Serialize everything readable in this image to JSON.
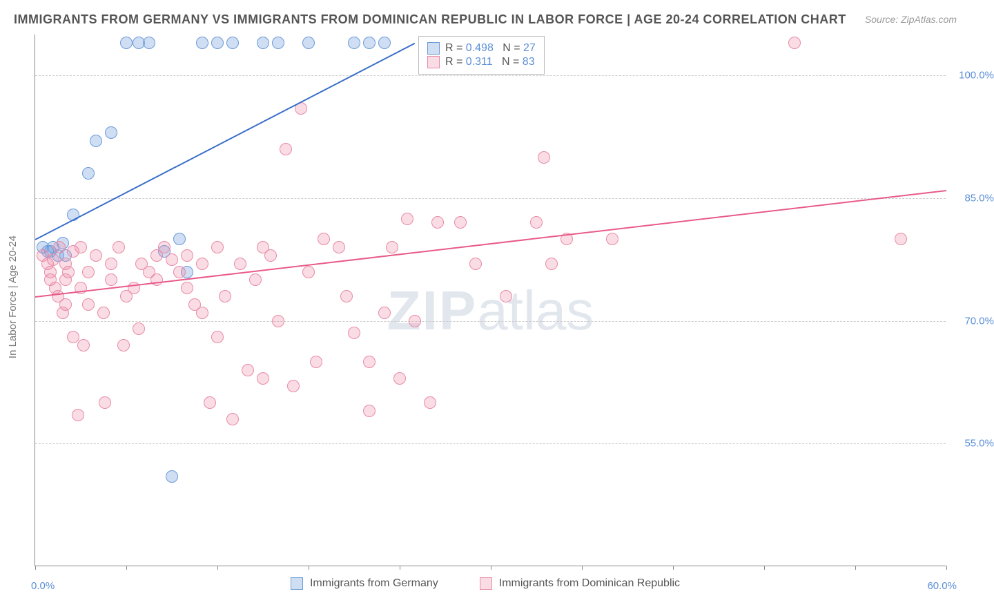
{
  "title": "IMMIGRANTS FROM GERMANY VS IMMIGRANTS FROM DOMINICAN REPUBLIC IN LABOR FORCE | AGE 20-24 CORRELATION CHART",
  "source": "Source: ZipAtlas.com",
  "y_axis_title": "In Labor Force | Age 20-24",
  "watermark_bold": "ZIP",
  "watermark_rest": "atlas",
  "chart": {
    "type": "scatter",
    "xlim": [
      0,
      60
    ],
    "ylim": [
      40,
      105
    ],
    "y_ticks": [
      55.0,
      70.0,
      85.0,
      100.0
    ],
    "y_tick_labels": [
      "55.0%",
      "70.0%",
      "85.0%",
      "100.0%"
    ],
    "x_origin_label": "0.0%",
    "x_end_label": "60.0%",
    "x_tick_positions": [
      0,
      6,
      12,
      18,
      24,
      30,
      36,
      42,
      48,
      54,
      60
    ],
    "grid_color": "#cccccc",
    "axis_color": "#888888",
    "tick_label_color": "#5b8fd6",
    "background_color": "#ffffff"
  },
  "series": [
    {
      "name": "Immigrants from Germany",
      "color_fill": "rgba(120,160,220,0.35)",
      "color_stroke": "#6a9bd8",
      "line_color": "#3a6fc9",
      "R": "0.498",
      "N": "27",
      "trend": {
        "x1": 0,
        "y1": 80,
        "x2": 25,
        "y2": 104
      },
      "points": [
        [
          0.5,
          79
        ],
        [
          0.8,
          78.5
        ],
        [
          1,
          78.5
        ],
        [
          1.2,
          79
        ],
        [
          1.5,
          78
        ],
        [
          1.8,
          79.5
        ],
        [
          2,
          78
        ],
        [
          2.5,
          83
        ],
        [
          3.5,
          88
        ],
        [
          4,
          92
        ],
        [
          5,
          93
        ],
        [
          6,
          104
        ],
        [
          6.8,
          104
        ],
        [
          7.5,
          104
        ],
        [
          8.5,
          78.5
        ],
        [
          9,
          51
        ],
        [
          9.5,
          80
        ],
        [
          10,
          76
        ],
        [
          11,
          104
        ],
        [
          12,
          104
        ],
        [
          13,
          104
        ],
        [
          15,
          104
        ],
        [
          16,
          104
        ],
        [
          18,
          104
        ],
        [
          21,
          104
        ],
        [
          22,
          104
        ],
        [
          23,
          104
        ]
      ]
    },
    {
      "name": "Immigrants from Dominican Republic",
      "color_fill": "rgba(240,140,170,0.3)",
      "color_stroke": "#e88aa8",
      "line_color": "#e85a8a",
      "R": "0.311",
      "N": "83",
      "trend": {
        "x1": 0,
        "y1": 73,
        "x2": 60,
        "y2": 86
      },
      "points": [
        [
          0.5,
          78
        ],
        [
          0.8,
          77
        ],
        [
          1,
          76
        ],
        [
          1,
          75
        ],
        [
          1.2,
          77.5
        ],
        [
          1.3,
          74
        ],
        [
          1.5,
          73
        ],
        [
          1.6,
          79
        ],
        [
          1.8,
          71
        ],
        [
          2,
          75
        ],
        [
          2,
          77
        ],
        [
          2,
          72
        ],
        [
          2.2,
          76
        ],
        [
          2.5,
          78.5
        ],
        [
          2.5,
          68
        ],
        [
          2.8,
          58.5
        ],
        [
          3,
          74
        ],
        [
          3,
          79
        ],
        [
          3.2,
          67
        ],
        [
          3.5,
          76
        ],
        [
          3.5,
          72
        ],
        [
          4,
          78
        ],
        [
          4.5,
          71
        ],
        [
          4.6,
          60
        ],
        [
          5,
          75
        ],
        [
          5,
          77
        ],
        [
          5.5,
          79
        ],
        [
          5.8,
          67
        ],
        [
          6,
          73
        ],
        [
          6.5,
          74
        ],
        [
          6.8,
          69
        ],
        [
          7,
          77
        ],
        [
          7.5,
          76
        ],
        [
          8,
          75
        ],
        [
          8,
          78
        ],
        [
          8.5,
          79
        ],
        [
          9,
          77.5
        ],
        [
          9.5,
          76
        ],
        [
          10,
          74
        ],
        [
          10,
          78
        ],
        [
          10.5,
          72
        ],
        [
          11,
          71
        ],
        [
          11,
          77
        ],
        [
          11.5,
          60
        ],
        [
          12,
          68
        ],
        [
          12,
          79
        ],
        [
          12.5,
          73
        ],
        [
          13,
          58
        ],
        [
          13.5,
          77
        ],
        [
          14,
          64
        ],
        [
          14.5,
          75
        ],
        [
          15,
          79
        ],
        [
          15,
          63
        ],
        [
          15.5,
          78
        ],
        [
          16,
          70
        ],
        [
          16.5,
          91
        ],
        [
          17,
          62
        ],
        [
          17.5,
          96
        ],
        [
          18,
          76
        ],
        [
          18.5,
          65
        ],
        [
          19,
          80
        ],
        [
          20,
          79
        ],
        [
          20.5,
          73
        ],
        [
          21,
          68.5
        ],
        [
          22,
          59
        ],
        [
          22,
          65
        ],
        [
          23,
          71
        ],
        [
          23.5,
          79
        ],
        [
          24,
          63
        ],
        [
          24.5,
          82.5
        ],
        [
          25,
          70
        ],
        [
          26,
          60
        ],
        [
          26.5,
          82
        ],
        [
          28,
          82
        ],
        [
          29,
          77
        ],
        [
          31,
          73
        ],
        [
          33,
          82
        ],
        [
          33.5,
          90
        ],
        [
          34,
          77
        ],
        [
          35,
          80
        ],
        [
          38,
          80
        ],
        [
          50,
          104
        ],
        [
          57,
          80
        ]
      ]
    }
  ],
  "legend_box": {
    "rows": [
      {
        "series_idx": 0,
        "r_label": "R =",
        "n_label": "N ="
      },
      {
        "series_idx": 1,
        "r_label": "R =",
        "n_label": "N ="
      }
    ]
  },
  "bottom_legend": [
    {
      "series_idx": 0
    },
    {
      "series_idx": 1
    }
  ]
}
